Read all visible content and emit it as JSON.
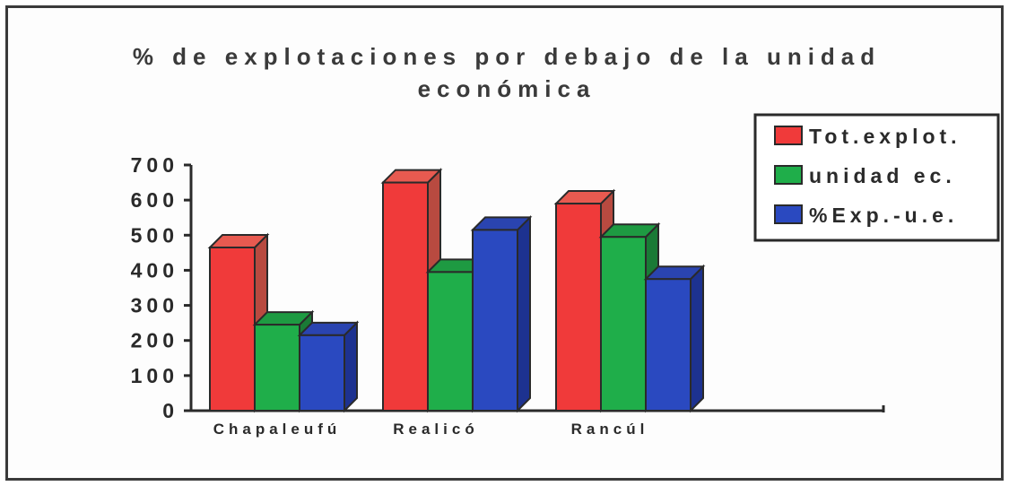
{
  "chart_data": {
    "type": "bar",
    "title_line1": "% de explotaciones por debajo de la unidad",
    "title_line2": "económica",
    "categories": [
      "Chapaleufú",
      "Realicó",
      "Rancúl"
    ],
    "series": [
      {
        "name": "Tot.explot.",
        "values": [
          465,
          650,
          590
        ],
        "color": "#f03a3a",
        "side": "#b84a40",
        "top": "#e85a50"
      },
      {
        "name": "unidad ec.",
        "values": [
          245,
          395,
          495
        ],
        "color": "#1fae4a",
        "side": "#1a7a36",
        "top": "#1e9a42"
      },
      {
        "name": "%Exp.-u.e.",
        "values": [
          215,
          515,
          375
        ],
        "color": "#2a49c0",
        "side": "#1d3290",
        "top": "#2a44b0"
      }
    ],
    "yticks": [
      "700",
      "600",
      "500",
      "400",
      "300",
      "200",
      "100",
      "0"
    ],
    "ylim": [
      0,
      700
    ],
    "legend_position": "top-right",
    "grid": false
  }
}
